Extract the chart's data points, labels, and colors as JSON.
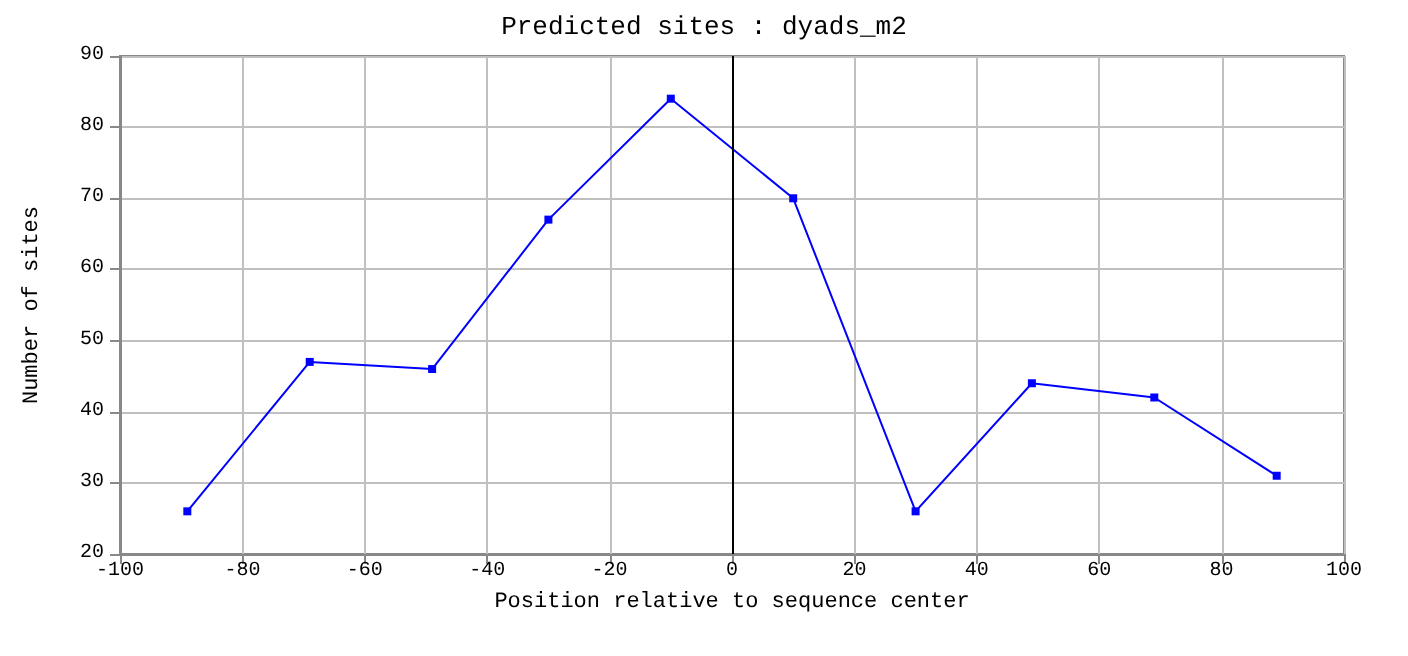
{
  "chart_data": {
    "type": "line",
    "title": "Predicted sites : dyads_m2",
    "xlabel": "Position relative to sequence center",
    "ylabel": "Number of sites",
    "x": [
      -89,
      -69,
      -49,
      -30,
      -10,
      10,
      30,
      49,
      69,
      89
    ],
    "series": [
      {
        "color": "#0000ff",
        "values": [
          26,
          47,
          46,
          67,
          84,
          70,
          26,
          44,
          42,
          31
        ]
      }
    ],
    "xlim": [
      -100,
      100
    ],
    "xticks": [
      -100,
      -80,
      -60,
      -40,
      -20,
      0,
      20,
      40,
      60,
      80,
      100
    ],
    "ylim": [
      20,
      90
    ],
    "yticks": [
      20,
      30,
      40,
      50,
      60,
      70,
      80,
      90
    ],
    "ref_lines": [
      {
        "axis": "x",
        "value": 0,
        "color": "#000000"
      }
    ],
    "grid": true,
    "marker": "square",
    "line_style": "solid"
  }
}
